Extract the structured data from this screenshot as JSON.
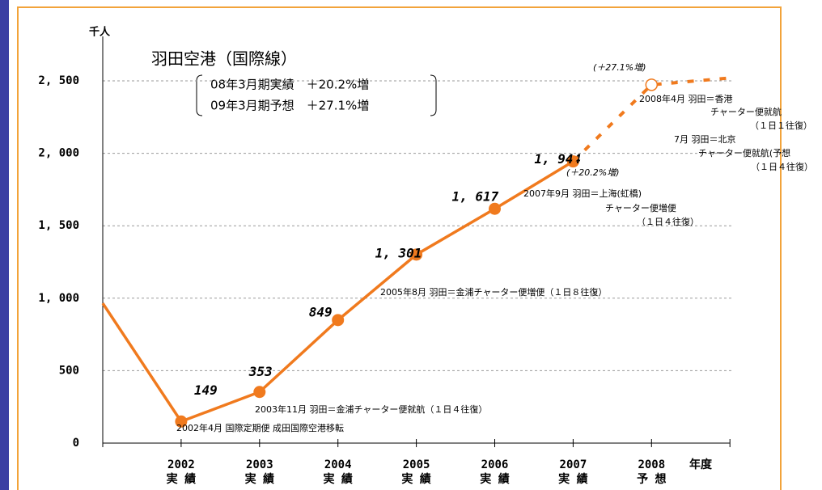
{
  "chart_data": {
    "type": "line",
    "title": "羽田空港（国際線）",
    "summary": [
      "08年3月期実績　＋20.2%増",
      "09年3月期予想　＋27.1%増"
    ],
    "y_label": "千人",
    "x_label": "年度",
    "categories": [
      null,
      "2002",
      "2003",
      "2004",
      "2005",
      "2006",
      "2007",
      "2008",
      null
    ],
    "sublabels": [
      null,
      "実 績",
      "実 績",
      "実 績",
      "実 績",
      "実 績",
      "実 績",
      "予 想",
      null
    ],
    "series": [
      {
        "name": "実績",
        "color": "#f07a1e",
        "style": "solid",
        "values": [
          965,
          149,
          353,
          849,
          1301,
          1617,
          1944,
          null,
          null
        ],
        "value_labels": [
          null,
          "149",
          "353",
          "849",
          "1, 301",
          "1, 617",
          "1, 944",
          null,
          null
        ]
      },
      {
        "name": "予想",
        "color": "#f07a1e",
        "style": "dashed",
        "values": [
          null,
          null,
          null,
          null,
          null,
          null,
          1944,
          2473,
          2520
        ]
      }
    ],
    "growth_labels": [
      "(＋20.2%増)",
      "(＋27.1%増)"
    ],
    "annotations": [
      "2002年4月  国際定期便 成田国際空港移転",
      "2003年11月  羽田＝金浦チャーター便就航（１日４往復）",
      "2005年8月  羽田＝金浦チャーター便増便（１日８往復）",
      "2007年9月  羽田＝上海(虹橋)",
      "チャーター便増便",
      "（１日４往復）",
      "2008年4月  羽田＝香港",
      "チャーター便就航",
      "（１日１往復）",
      "7月  羽田＝北京",
      "チャーター便就航(予想",
      "（１日４往復）"
    ],
    "ylim": [
      0,
      2500
    ],
    "yticks": [
      0,
      500,
      {
        "value": 1000,
        "label": "1, 000"
      },
      {
        "value": 1500,
        "label": "1, 500"
      },
      {
        "value": 2000,
        "label": "2, 000"
      },
      {
        "value": 2500,
        "label": "2, 500"
      }
    ],
    "grid": true
  }
}
